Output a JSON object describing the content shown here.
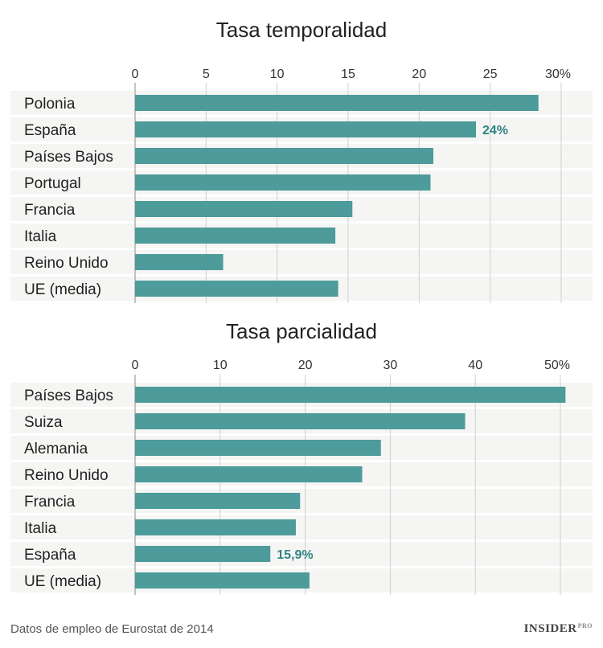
{
  "chart_data": [
    {
      "type": "bar",
      "orientation": "horizontal",
      "title": "Tasa temporalidad",
      "categories": [
        "Polonia",
        "España",
        "Países Bajos",
        "Portugal",
        "Francia",
        "Italia",
        "Reino Unido",
        "UE (media)"
      ],
      "values": [
        28.4,
        24,
        21,
        20.8,
        15.3,
        14.1,
        6.2,
        14.3
      ],
      "xlim": [
        0,
        30
      ],
      "ticks": [
        0,
        5,
        10,
        15,
        20,
        25,
        30
      ],
      "tick_labels": [
        "0",
        "5",
        "10",
        "15",
        "20",
        "25",
        "30%"
      ],
      "annotations": [
        {
          "category": "España",
          "label": "24%"
        }
      ]
    },
    {
      "type": "bar",
      "orientation": "horizontal",
      "title": "Tasa parcialidad",
      "categories": [
        "Países Bajos",
        "Suiza",
        "Alemania",
        "Reino Unido",
        "Francia",
        "Italia",
        "España",
        "UE (media)"
      ],
      "values": [
        50.6,
        38.8,
        28.9,
        26.7,
        19.4,
        18.9,
        15.9,
        20.5
      ],
      "xlim": [
        0,
        50
      ],
      "ticks": [
        0,
        10,
        20,
        30,
        40,
        50
      ],
      "tick_labels": [
        "0",
        "10",
        "20",
        "30",
        "40",
        "50%"
      ],
      "annotations": [
        {
          "category": "España",
          "label": "15,9%"
        }
      ]
    }
  ],
  "footer": {
    "source": "Datos de empleo de Eurostat de 2014",
    "logo_main": "INSIDER",
    "logo_sub": "PRO"
  },
  "colors": {
    "bar": "#4d9b9b",
    "band": "#f5f5f3",
    "grid": "#cfcfcf",
    "annotation": "#2f8484",
    "text": "#222222"
  }
}
